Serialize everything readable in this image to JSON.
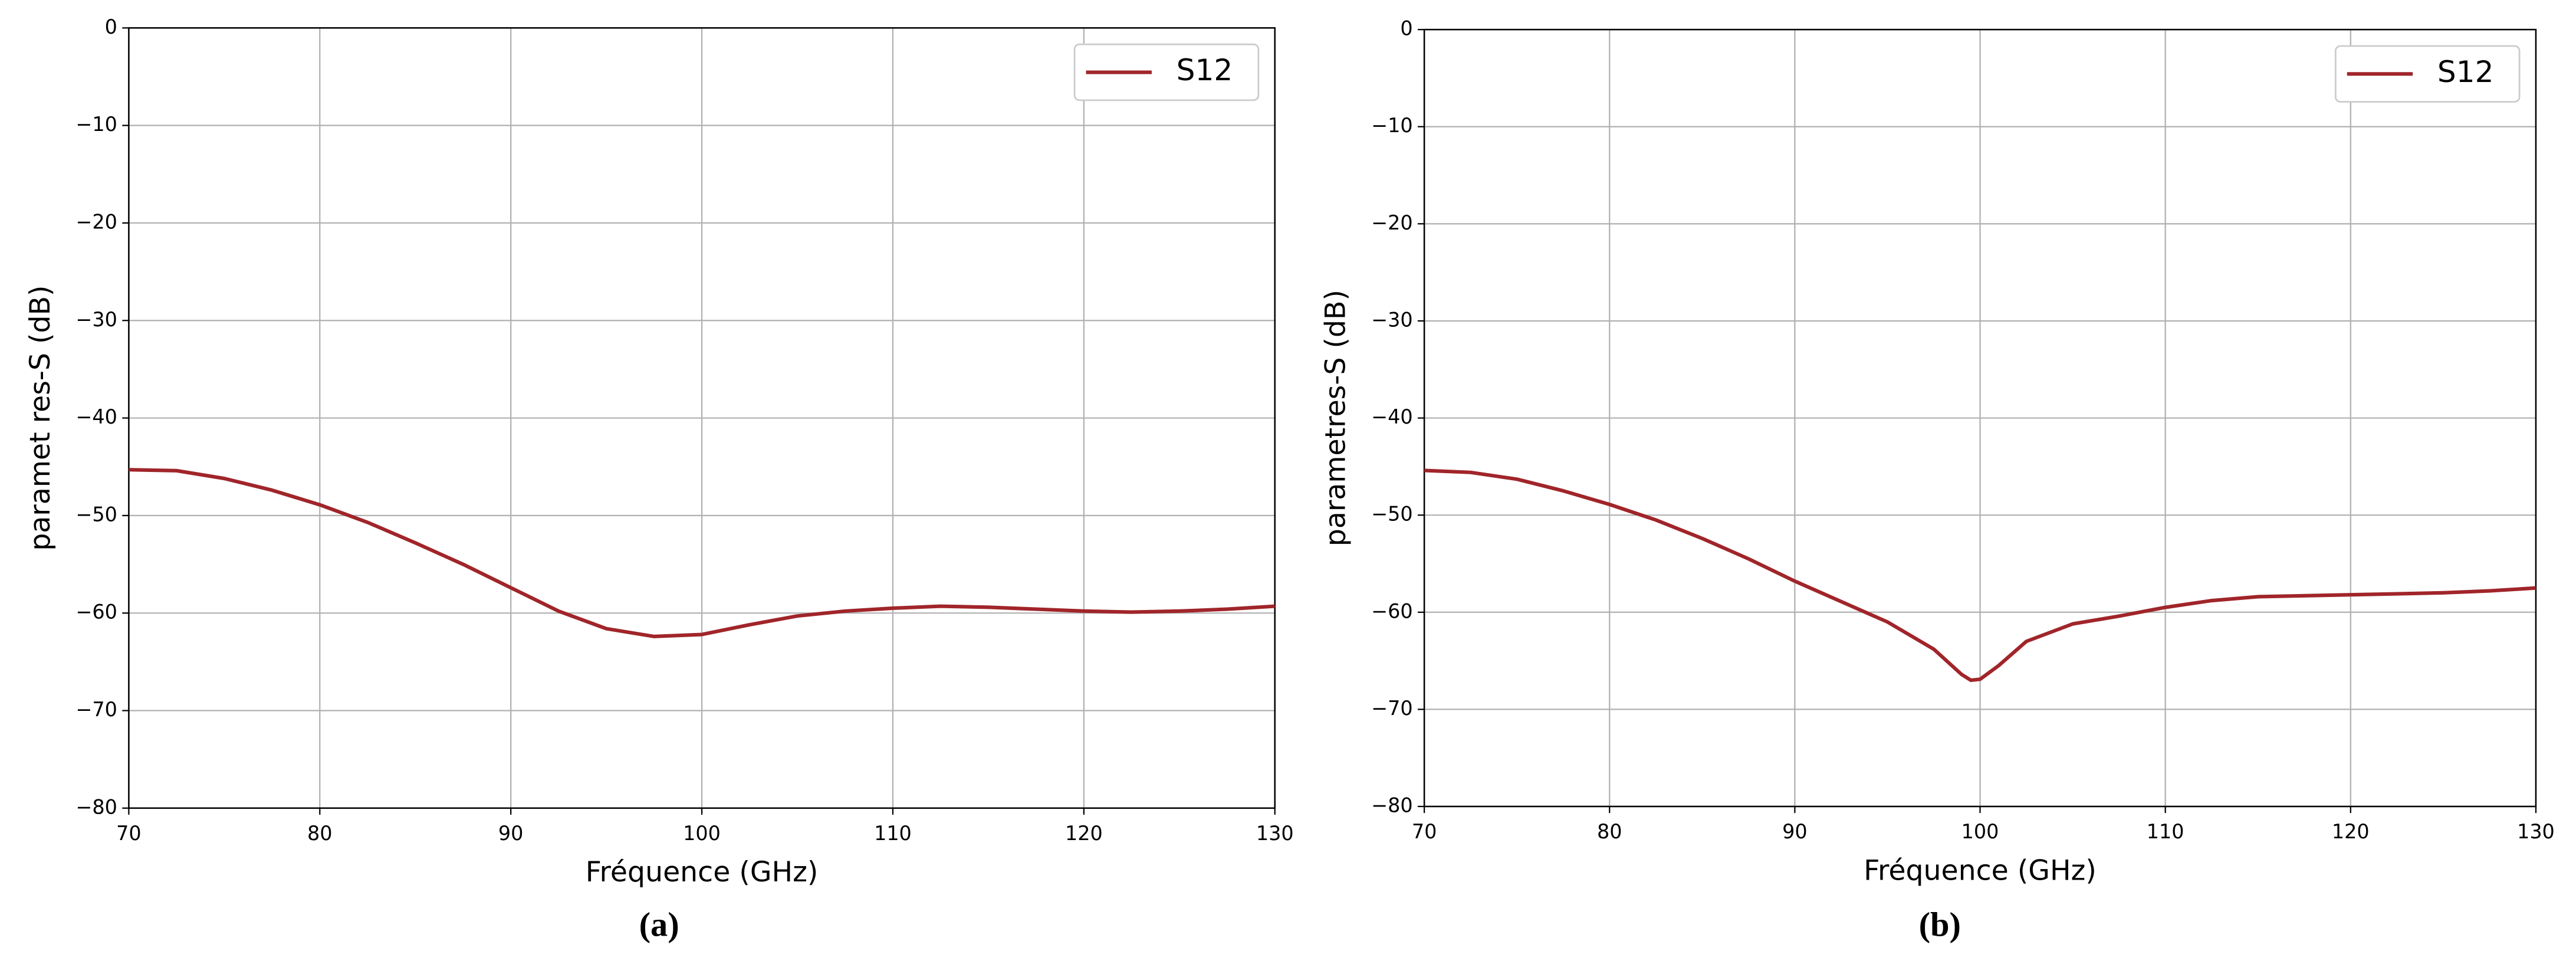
{
  "chart_data": [
    {
      "type": "line",
      "caption": "(a)",
      "xlabel": "Fréquence (GHz)",
      "ylabel": "paramet res-S (dB)",
      "x": [
        70,
        72.5,
        75,
        77.5,
        80,
        82.5,
        85,
        87.5,
        90,
        92.5,
        95,
        97.5,
        100,
        102.5,
        105,
        107.5,
        110,
        112.5,
        115,
        117.5,
        120,
        122.5,
        125,
        127.5,
        130
      ],
      "series": [
        {
          "name": "S12",
          "color": "#a0252a",
          "values": [
            -45.3,
            -45.4,
            -46.2,
            -47.4,
            -48.9,
            -50.7,
            -52.8,
            -55.0,
            -57.4,
            -59.8,
            -61.6,
            -62.4,
            -62.2,
            -61.2,
            -60.3,
            -59.8,
            -59.5,
            -59.3,
            -59.4,
            -59.6,
            -59.8,
            -59.9,
            -59.8,
            -59.6,
            -59.3
          ]
        }
      ],
      "xlim": [
        70,
        130
      ],
      "xticks": [
        70,
        80,
        90,
        100,
        110,
        120,
        130
      ],
      "ylim": [
        -80,
        0
      ],
      "yticks": [
        {
          "value": -80,
          "label": "−80"
        },
        {
          "value": -70,
          "label": "−70"
        },
        {
          "value": -60,
          "label": "−60"
        },
        {
          "value": -50,
          "label": "−50"
        },
        {
          "value": -40,
          "label": "−40"
        },
        {
          "value": -30,
          "label": "−30"
        },
        {
          "value": -20,
          "label": "−20"
        },
        {
          "value": -10,
          "label": "−10"
        },
        0
      ],
      "grid": true,
      "legend": "upper-right"
    },
    {
      "type": "line",
      "caption": "(b)",
      "xlabel": "Fréquence (GHz)",
      "ylabel": "parametres-S (dB)",
      "x": [
        70,
        72.5,
        75,
        77.5,
        80,
        82.5,
        85,
        87.5,
        90,
        92.5,
        95,
        97.5,
        99,
        99.5,
        100,
        101,
        102.5,
        105,
        107.5,
        110,
        112.5,
        115,
        117.5,
        120,
        122.5,
        125,
        127.5,
        130
      ],
      "series": [
        {
          "name": "S12",
          "color": "#a0252a",
          "values": [
            -45.4,
            -45.6,
            -46.3,
            -47.5,
            -48.9,
            -50.5,
            -52.4,
            -54.5,
            -56.8,
            -58.9,
            -61.0,
            -63.8,
            -66.4,
            -67.0,
            -66.9,
            -65.5,
            -63.0,
            -61.2,
            -60.4,
            -59.5,
            -58.8,
            -58.4,
            -58.3,
            -58.2,
            -58.1,
            -58.0,
            -57.8,
            -57.5
          ]
        }
      ],
      "xlim": [
        70,
        130
      ],
      "xticks": [
        70,
        80,
        90,
        100,
        110,
        120,
        130
      ],
      "ylim": [
        -80,
        0
      ],
      "yticks": [
        {
          "value": -80,
          "label": "−80"
        },
        {
          "value": -70,
          "label": "−70"
        },
        {
          "value": -60,
          "label": "−60"
        },
        {
          "value": -50,
          "label": "−50"
        },
        {
          "value": -40,
          "label": "−40"
        },
        {
          "value": -30,
          "label": "−30"
        },
        {
          "value": -20,
          "label": "−20"
        },
        {
          "value": -10,
          "label": "−10"
        },
        0
      ],
      "grid": true,
      "legend": "upper-right"
    }
  ]
}
